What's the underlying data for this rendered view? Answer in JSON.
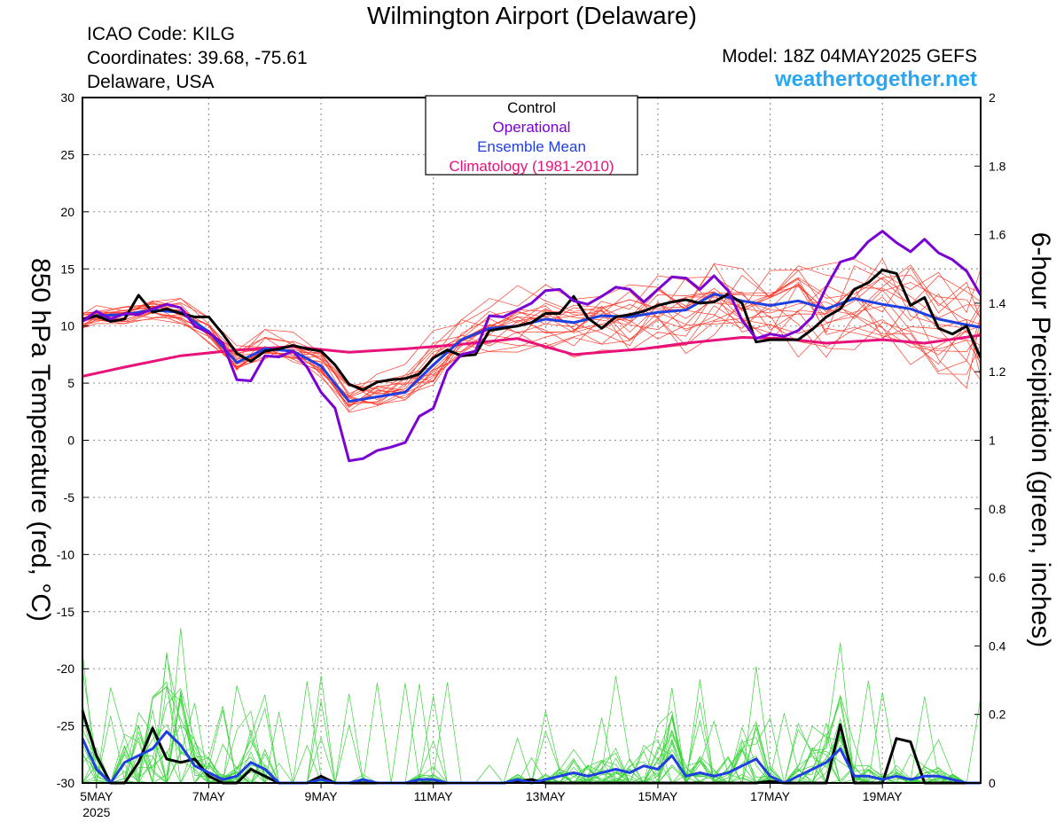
{
  "header": {
    "title": "Wilmington Airport (Delaware)",
    "icao": "ICAO Code: KILG",
    "coordinates": "Coordinates: 39.68, -75.61",
    "region": "Delaware, USA",
    "model": "Model: 18Z 04MAY2025 GEFS",
    "site": "weathertogether.net"
  },
  "chart_data": {
    "type": "line",
    "ylabel": "850 hPa Temperature (red, °C)",
    "y2label": "6-hour Precipitation (green, inches)",
    "ylim": [
      -30,
      30
    ],
    "y2lim": [
      0,
      2
    ],
    "yticks": [
      30,
      25,
      20,
      15,
      10,
      5,
      0,
      -5,
      -10,
      -15,
      -20,
      -25,
      -30
    ],
    "y2ticks": [
      2,
      1.8,
      1.6,
      1.4,
      1.2,
      1,
      0.8,
      0.6,
      0.4,
      0.2,
      0
    ],
    "xticks": [
      {
        "label": "5MAY",
        "day": 5
      },
      {
        "label": "7MAY",
        "day": 7
      },
      {
        "label": "9MAY",
        "day": 9
      },
      {
        "label": "11MAY",
        "day": 11
      },
      {
        "label": "13MAY",
        "day": 13
      },
      {
        "label": "15MAY",
        "day": 15
      },
      {
        "label": "17MAY",
        "day": 17
      },
      {
        "label": "19MAY",
        "day": 19
      }
    ],
    "xyear": "2025",
    "xlim": [
      4.75,
      20.75
    ],
    "grid": true,
    "legend_position": "top-center",
    "legend": [
      {
        "label": "Control",
        "color": "#000000"
      },
      {
        "label": "Operational",
        "color": "#7a00d4"
      },
      {
        "label": "Ensemble Mean",
        "color": "#1f3fe0"
      },
      {
        "label": "Climatology (1981-2010)",
        "color": "#e8127a"
      }
    ],
    "series": [
      {
        "name": "Climatology (1981-2010)",
        "axis": "temp",
        "color": "#e8127a",
        "width": 3,
        "x": [
          4.75,
          5.5,
          6.5,
          7.5,
          8.5,
          9.5,
          10.5,
          11.5,
          12.5,
          13.0,
          13.5,
          14.0,
          14.75,
          15.5,
          16.5,
          17.25,
          18.0,
          19.0,
          19.75,
          20.75
        ],
        "y": [
          5.6,
          6.4,
          7.4,
          7.9,
          8.2,
          7.7,
          8.0,
          8.4,
          8.9,
          8.2,
          7.5,
          7.7,
          8.0,
          8.5,
          9.0,
          8.9,
          8.5,
          8.8,
          8.5,
          9.2
        ]
      },
      {
        "name": "Ensemble Mean",
        "axis": "temp",
        "color": "#1f3fe0",
        "width": 3,
        "x": [
          4.75,
          5.0,
          5.5,
          6.0,
          6.5,
          7.0,
          7.5,
          8.0,
          8.5,
          9.0,
          9.5,
          10.0,
          10.5,
          11.0,
          11.5,
          12.0,
          12.5,
          13.0,
          13.5,
          14.0,
          14.5,
          15.0,
          15.5,
          16.0,
          16.5,
          17.0,
          17.5,
          18.0,
          18.5,
          19.0,
          19.5,
          20.0,
          20.5,
          20.75
        ],
        "y": [
          10.5,
          10.9,
          11.0,
          11.4,
          11.2,
          9.5,
          6.8,
          8.0,
          7.8,
          6.5,
          3.4,
          3.8,
          4.2,
          6.6,
          8.8,
          9.8,
          10.0,
          10.6,
          10.3,
          10.9,
          10.8,
          11.2,
          11.4,
          12.8,
          12.2,
          11.8,
          12.2,
          11.5,
          12.4,
          11.9,
          11.5,
          10.6,
          10.1,
          9.9
        ]
      },
      {
        "name": "Control",
        "axis": "temp",
        "color": "#000000",
        "width": 3,
        "x": [
          4.75,
          5.0,
          5.25,
          5.5,
          5.75,
          6.0,
          6.25,
          6.5,
          6.75,
          7.0,
          7.25,
          7.5,
          7.75,
          8.0,
          8.25,
          8.5,
          8.75,
          9.0,
          9.25,
          9.5,
          9.75,
          10.0,
          10.25,
          10.5,
          10.75,
          11.0,
          11.25,
          11.5,
          11.75,
          12.0,
          12.25,
          12.5,
          12.75,
          13.0,
          13.25,
          13.5,
          13.75,
          14.0,
          14.25,
          14.5,
          14.75,
          15.0,
          15.25,
          15.5,
          15.75,
          16.0,
          16.25,
          16.5,
          16.75,
          17.0,
          17.25,
          17.5,
          17.75,
          18.0,
          18.25,
          18.5,
          18.75,
          19.0,
          19.25,
          19.5,
          19.75,
          20.0,
          20.25,
          20.5,
          20.75
        ],
        "y": [
          10.6,
          10.9,
          10.4,
          10.6,
          12.7,
          11.2,
          11.5,
          11.1,
          10.8,
          10.8,
          9.3,
          7.6,
          6.9,
          7.8,
          8.0,
          8.3,
          8.0,
          7.8,
          6.6,
          4.9,
          4.4,
          5.1,
          5.3,
          5.4,
          5.8,
          7.2,
          7.9,
          7.4,
          7.5,
          9.6,
          9.8,
          10.0,
          10.3,
          11.1,
          11.1,
          12.6,
          10.7,
          9.8,
          10.8,
          11.0,
          11.3,
          11.8,
          12.1,
          12.3,
          12.0,
          12.1,
          12.8,
          12.0,
          8.6,
          8.8,
          8.8,
          8.8,
          9.7,
          10.8,
          11.5,
          13.2,
          13.8,
          14.9,
          14.6,
          11.8,
          12.5,
          9.8,
          9.3,
          10.0,
          7.2
        ]
      },
      {
        "name": "Operational",
        "axis": "temp",
        "color": "#7a00d4",
        "width": 3,
        "x": [
          4.75,
          5.0,
          5.25,
          5.5,
          5.75,
          6.0,
          6.25,
          6.5,
          6.75,
          7.0,
          7.25,
          7.5,
          7.75,
          8.0,
          8.25,
          8.5,
          8.75,
          9.0,
          9.25,
          9.5,
          9.75,
          10.0,
          10.25,
          10.5,
          10.75,
          11.0,
          11.25,
          11.5,
          11.75,
          12.0,
          12.25,
          12.5,
          12.75,
          13.0,
          13.25,
          13.5,
          13.75,
          14.0,
          14.25,
          14.5,
          14.75,
          15.0,
          15.25,
          15.5,
          15.75,
          16.0,
          16.25,
          16.5,
          16.75,
          17.0,
          17.25,
          17.5,
          17.75,
          18.0,
          18.25,
          18.5,
          18.75,
          19.0,
          19.25,
          19.5,
          19.75,
          20.0,
          20.25,
          20.5,
          20.75
        ],
        "y": [
          10.4,
          11.3,
          10.6,
          11.1,
          11.0,
          11.5,
          11.9,
          11.6,
          10.0,
          9.4,
          8.5,
          5.3,
          5.2,
          7.4,
          7.3,
          7.8,
          6.4,
          4.2,
          2.8,
          -1.8,
          -1.6,
          -0.9,
          -0.6,
          -0.2,
          2.1,
          2.8,
          6.1,
          7.5,
          7.8,
          10.9,
          10.8,
          11.4,
          12.0,
          13.1,
          13.2,
          12.2,
          11.9,
          12.6,
          13.4,
          13.2,
          12.1,
          13.2,
          14.3,
          14.2,
          13.2,
          14.4,
          13.1,
          10.5,
          8.9,
          9.3,
          9.1,
          9.6,
          10.8,
          13.4,
          15.6,
          16.0,
          17.4,
          18.3,
          17.3,
          16.5,
          17.6,
          16.4,
          15.8,
          14.8,
          12.7
        ]
      },
      {
        "name": "Control",
        "axis": "precip",
        "color": "#000000",
        "width": 3,
        "x": [
          4.75,
          5.0,
          5.25,
          5.5,
          5.75,
          6.0,
          6.25,
          6.5,
          6.75,
          7.0,
          7.25,
          7.5,
          7.75,
          8.0,
          8.25,
          8.5,
          8.75,
          9.0,
          9.25,
          9.5,
          9.75,
          10.0,
          10.25,
          10.5,
          10.75,
          11.0,
          11.25,
          11.5,
          11.75,
          12.0,
          12.25,
          12.5,
          12.75,
          13.0,
          13.25,
          13.5,
          13.75,
          14.0,
          14.25,
          14.5,
          14.75,
          15.0,
          15.25,
          15.5,
          15.75,
          16.0,
          16.25,
          16.5,
          16.75,
          17.0,
          17.25,
          17.5,
          17.75,
          18.0,
          18.25,
          18.5,
          18.75,
          19.0,
          19.25,
          19.5,
          19.75,
          20.0,
          20.25,
          20.5,
          20.75
        ],
        "y": [
          0.21,
          0.08,
          0.0,
          0.0,
          0.06,
          0.16,
          0.07,
          0.06,
          0.07,
          0.02,
          0.0,
          0.0,
          0.04,
          0.02,
          0.0,
          0.0,
          0.0,
          0.02,
          0.0,
          0.0,
          0.0,
          0.0,
          0.0,
          0.0,
          0.0,
          0.0,
          0.0,
          0.0,
          0.0,
          0.0,
          0.0,
          0.005,
          0.01,
          0.0,
          0.0,
          0.0,
          0.0,
          0.0,
          0.0,
          0.0,
          0.0,
          0.0,
          0.0,
          0.0,
          0.0,
          0.0,
          0.0,
          0.0,
          0.0,
          0.005,
          0.0,
          0.0,
          0.0,
          0.0,
          0.17,
          0.0,
          0.0,
          0.0,
          0.13,
          0.12,
          0.0,
          0.0,
          0.0,
          0.0,
          0.0
        ]
      },
      {
        "name": "Ensemble Mean",
        "axis": "precip",
        "color": "#1f3fe0",
        "width": 3,
        "x": [
          4.75,
          5.0,
          5.25,
          5.5,
          5.75,
          6.0,
          6.25,
          6.5,
          6.75,
          7.0,
          7.25,
          7.5,
          7.75,
          8.0,
          8.25,
          8.5,
          8.75,
          9.0,
          9.25,
          9.5,
          9.75,
          10.0,
          10.25,
          10.5,
          10.75,
          11.0,
          11.25,
          11.5,
          11.75,
          12.0,
          12.25,
          12.5,
          12.75,
          13.0,
          13.25,
          13.5,
          13.75,
          14.0,
          14.25,
          14.5,
          14.75,
          15.0,
          15.25,
          15.5,
          15.75,
          16.0,
          16.25,
          16.5,
          16.75,
          17.0,
          17.25,
          17.5,
          17.75,
          18.0,
          18.25,
          18.5,
          18.75,
          19.0,
          19.25,
          19.5,
          19.75,
          20.0,
          20.25,
          20.5,
          20.75
        ],
        "y": [
          0.13,
          0.04,
          0.0,
          0.06,
          0.08,
          0.1,
          0.15,
          0.11,
          0.05,
          0.03,
          0.01,
          0.02,
          0.06,
          0.04,
          0.0,
          0.0,
          0.0,
          0.01,
          0.0,
          0.0,
          0.01,
          0.0,
          0.0,
          0.0,
          0.01,
          0.01,
          0.0,
          0.0,
          0.0,
          0.0,
          0.0,
          0.01,
          0.0,
          0.01,
          0.02,
          0.03,
          0.02,
          0.03,
          0.04,
          0.03,
          0.05,
          0.04,
          0.08,
          0.02,
          0.03,
          0.02,
          0.03,
          0.05,
          0.07,
          0.02,
          0.0,
          0.02,
          0.04,
          0.06,
          0.1,
          0.02,
          0.02,
          0.01,
          0.02,
          0.01,
          0.02,
          0.02,
          0.01,
          0.0,
          0.0
        ]
      }
    ],
    "ensemble_members": {
      "temp": {
        "count": 20,
        "color": "#ff3a2a",
        "width": 0.7
      },
      "precip": {
        "count": 20,
        "color": "#3ad43a",
        "width": 0.7
      }
    }
  }
}
